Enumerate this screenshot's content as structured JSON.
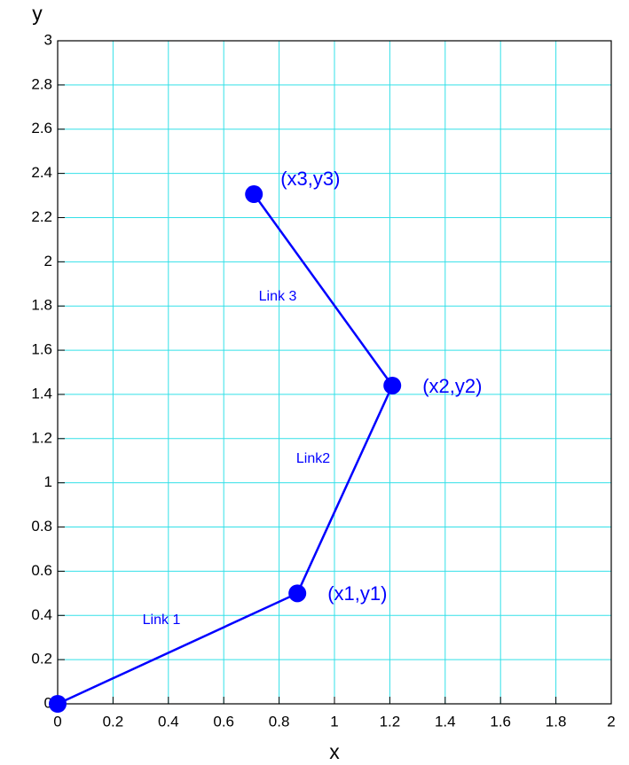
{
  "chart_data": {
    "type": "line",
    "x_label": "x",
    "y_label": "y",
    "xlim": [
      0,
      2
    ],
    "ylim": [
      0,
      3
    ],
    "xticks": [
      0,
      0.2,
      0.4,
      0.6,
      0.8,
      1,
      1.2,
      1.4,
      1.6,
      1.8,
      2
    ],
    "yticks": [
      0,
      0.2,
      0.4,
      0.6,
      0.8,
      1,
      1.2,
      1.4,
      1.6,
      1.8,
      2,
      2.2,
      2.4,
      2.6,
      2.8,
      3
    ],
    "grid": true,
    "grid_color": "#33e0e8",
    "series": [
      {
        "color": "#0000ff",
        "x": [
          0,
          0.866,
          1.209,
          0.709
        ],
        "values": [
          0,
          0.5,
          1.44,
          2.306
        ]
      }
    ],
    "point_labels": [
      "(x1,y1)",
      "(x2,y2)",
      "(x3,y3)"
    ],
    "link_labels": [
      "Link 1",
      "Link2",
      "Link 3"
    ]
  }
}
